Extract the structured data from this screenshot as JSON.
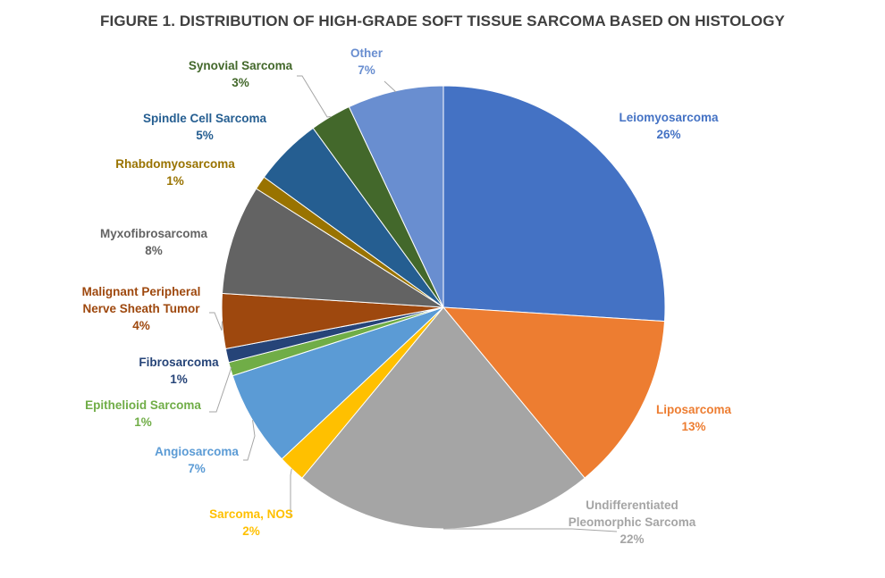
{
  "chart_data": {
    "type": "pie",
    "title": "FIGURE 1. DISTRIBUTION OF HIGH-GRADE SOFT TISSUE SARCOMA BASED ON HISTOLOGY",
    "slices": [
      {
        "label": "Leiomyosarcoma",
        "value": 26,
        "value_label": "26%",
        "color": "#4472C4"
      },
      {
        "label": "Liposarcoma",
        "value": 13,
        "value_label": "13%",
        "color": "#ED7D31"
      },
      {
        "label": "Undifferentiated Pleomorphic Sarcoma",
        "value": 22,
        "value_label": "22%",
        "color": "#A5A5A5"
      },
      {
        "label": "Sarcoma, NOS",
        "value": 2,
        "value_label": "2%",
        "color": "#FFC000"
      },
      {
        "label": "Angiosarcoma",
        "value": 7,
        "value_label": "7%",
        "color": "#5B9BD5"
      },
      {
        "label": "Epithelioid Sarcoma",
        "value": 1,
        "value_label": "1%",
        "color": "#70AD47"
      },
      {
        "label": "Fibrosarcoma",
        "value": 1,
        "value_label": "1%",
        "color": "#264478"
      },
      {
        "label": "Malignant Peripheral Nerve Sheath Tumor",
        "value": 4,
        "value_label": "4%",
        "color": "#9E480E"
      },
      {
        "label": "Myxofibrosarcoma",
        "value": 8,
        "value_label": "8%",
        "color": "#636363"
      },
      {
        "label": "Rhabdomyosarcoma",
        "value": 1,
        "value_label": "1%",
        "color": "#997300"
      },
      {
        "label": "Spindle Cell Sarcoma",
        "value": 5,
        "value_label": "5%",
        "color": "#255E91"
      },
      {
        "label": "Synovial Sarcoma",
        "value": 3,
        "value_label": "3%",
        "color": "#43682B"
      },
      {
        "label": "Other",
        "value": 7,
        "value_label": "7%",
        "color": "#698ED0"
      }
    ]
  }
}
